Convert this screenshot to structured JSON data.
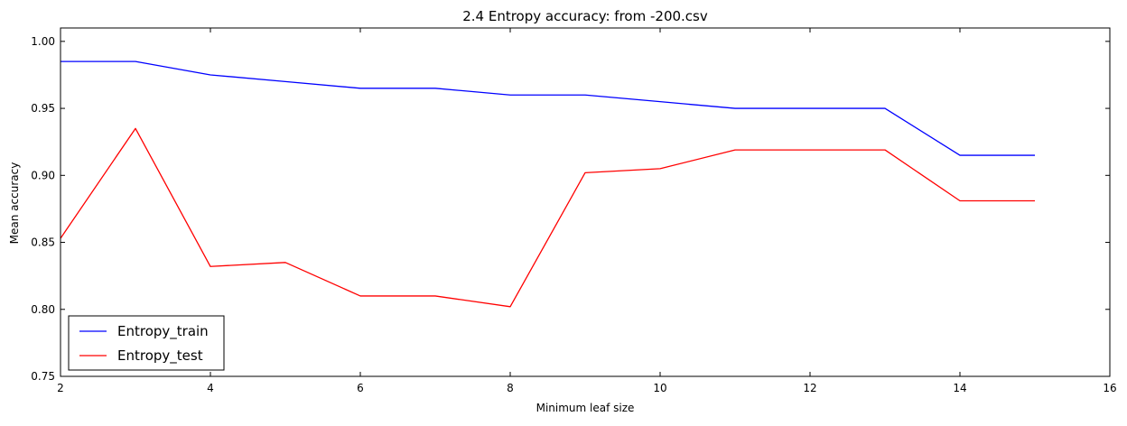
{
  "chart_data": {
    "type": "line",
    "title": "2.4 Entropy accuracy: from -200.csv",
    "xlabel": "Minimum leaf size",
    "ylabel": "Mean accuracy",
    "xlim": [
      2,
      16
    ],
    "ylim": [
      0.75,
      1.01
    ],
    "xticks": [
      2,
      4,
      6,
      8,
      10,
      12,
      14,
      16
    ],
    "xtick_labels": [
      "2",
      "4",
      "6",
      "8",
      "10",
      "12",
      "14",
      "16"
    ],
    "yticks": [
      0.75,
      0.8,
      0.85,
      0.9,
      0.95,
      1.0
    ],
    "ytick_labels": [
      "0.75",
      "0.80",
      "0.85",
      "0.90",
      "0.95",
      "1.00"
    ],
    "grid": false,
    "legend": {
      "location": "lower-left"
    },
    "x": [
      2,
      3,
      4,
      5,
      6,
      7,
      8,
      9,
      10,
      11,
      12,
      13,
      14,
      15
    ],
    "series": [
      {
        "name": "Entropy_train",
        "color": "#0000ff",
        "values": [
          0.985,
          0.985,
          0.975,
          0.97,
          0.965,
          0.965,
          0.96,
          0.96,
          0.955,
          0.95,
          0.95,
          0.95,
          0.915,
          0.915
        ]
      },
      {
        "name": "Entropy_test",
        "color": "#ff0000",
        "values": [
          0.853,
          0.935,
          0.832,
          0.835,
          0.81,
          0.81,
          0.802,
          0.902,
          0.905,
          0.919,
          0.919,
          0.919,
          0.881,
          0.881
        ]
      }
    ]
  }
}
